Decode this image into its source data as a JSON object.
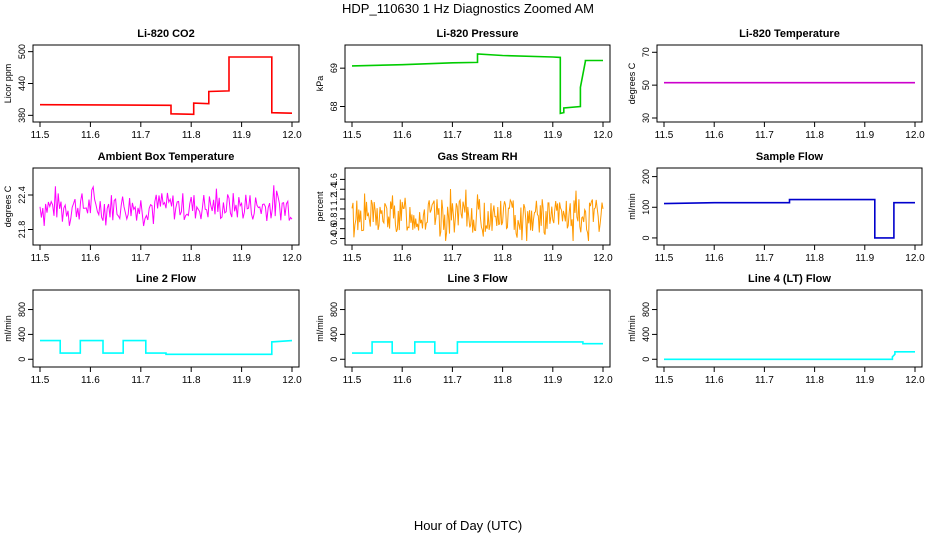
{
  "page": {
    "title": "HDP_110630  1 Hz Diagnostics Zoomed AM",
    "xlabel": "Hour of Day (UTC)"
  },
  "chart_data": [
    {
      "type": "line",
      "title": "Li-820 CO2",
      "ylabel": "Licor ppm",
      "color": "#ff0000",
      "xlim": [
        11.5,
        12.0
      ],
      "xticks": [
        "11.5",
        "11.6",
        "11.7",
        "11.8",
        "11.9",
        "12.0"
      ],
      "ylim": [
        375,
        505
      ],
      "yticks": [
        380,
        440,
        500
      ],
      "series": [
        {
          "x": [
            11.5,
            11.76,
            11.76,
            11.805,
            11.805,
            11.835,
            11.835,
            11.875,
            11.875,
            11.96,
            11.96,
            12.0
          ],
          "y": [
            400,
            399,
            383,
            382,
            403,
            402,
            425,
            426,
            490,
            490,
            385,
            384
          ]
        }
      ]
    },
    {
      "type": "line",
      "title": "Li-820 Pressure",
      "ylabel": "kPa",
      "color": "#00cc00",
      "xlim": [
        11.5,
        12.0
      ],
      "xticks": [
        "11.5",
        "11.6",
        "11.7",
        "11.8",
        "11.9",
        "12.0"
      ],
      "ylim": [
        67.7,
        69.5
      ],
      "yticks": [
        68.0,
        69.0
      ],
      "series": [
        {
          "x": [
            11.5,
            11.6,
            11.7,
            11.75,
            11.75,
            11.8,
            11.9,
            11.915,
            11.915,
            11.922,
            11.922,
            11.955,
            11.955,
            11.965,
            11.965,
            12.0
          ],
          "y": [
            69.06,
            69.09,
            69.14,
            69.15,
            69.37,
            69.33,
            69.29,
            69.28,
            67.82,
            67.84,
            67.96,
            68.0,
            68.5,
            69.18,
            69.2,
            69.2
          ]
        }
      ]
    },
    {
      "type": "line",
      "title": "Li-820 Temperature",
      "ylabel": "degrees C",
      "color": "#cc00cc",
      "xlim": [
        11.5,
        12.0
      ],
      "xticks": [
        "11.5",
        "11.6",
        "11.7",
        "11.8",
        "11.9",
        "12.0"
      ],
      "ylim": [
        30,
        72
      ],
      "yticks": [
        30,
        50,
        70
      ],
      "series": [
        {
          "x": [
            11.5,
            12.0
          ],
          "y": [
            51.5,
            51.5
          ]
        }
      ]
    },
    {
      "type": "line",
      "title": "Ambient Box Temperature",
      "ylabel": "degrees C",
      "color": "#ff00ff",
      "noise": {
        "base": 22.2,
        "amp": 0.25,
        "count": 180,
        "seed": 7
      },
      "xlim": [
        11.5,
        12.0
      ],
      "xticks": [
        "11.5",
        "11.6",
        "11.7",
        "11.8",
        "11.9",
        "12.0"
      ],
      "ylim": [
        21.6,
        22.8
      ],
      "yticks": [
        21.8,
        22.4
      ],
      "series": [
        {
          "x": [
            11.5,
            12.0
          ],
          "y": [
            22.2,
            22.2
          ]
        }
      ]
    },
    {
      "type": "line",
      "title": "Gas Stream RH",
      "ylabel": "percent",
      "color": "#ff9900",
      "noise": {
        "base": 0.85,
        "amp": 0.35,
        "count": 260,
        "seed": 13
      },
      "xlim": [
        11.5,
        12.0
      ],
      "xticks": [
        "11.5",
        "11.6",
        "11.7",
        "11.8",
        "11.9",
        "12.0"
      ],
      "ylim": [
        0.35,
        1.75
      ],
      "yticks": [
        0.4,
        0.6,
        0.8,
        1.0,
        1.2,
        1.4,
        1.6
      ],
      "series": [
        {
          "x": [
            11.5,
            12.0
          ],
          "y": [
            0.85,
            0.85
          ]
        }
      ]
    },
    {
      "type": "line",
      "title": "Sample Flow",
      "ylabel": "ml/min",
      "color": "#0000cc",
      "xlim": [
        11.5,
        12.0
      ],
      "xticks": [
        "11.5",
        "11.6",
        "11.7",
        "11.8",
        "11.9",
        "12.0"
      ],
      "ylim": [
        -10,
        215
      ],
      "yticks": [
        0,
        100,
        200
      ],
      "series": [
        {
          "x": [
            11.5,
            11.6,
            11.75,
            11.75,
            11.9,
            11.92,
            11.92,
            11.958,
            11.958,
            12.0
          ],
          "y": [
            112,
            115,
            115,
            125,
            125,
            125,
            0,
            0,
            115,
            115
          ]
        }
      ]
    },
    {
      "type": "line",
      "title": "Line 2 Flow",
      "ylabel": "ml/min",
      "color": "#00ffff",
      "xlim": [
        11.5,
        12.0
      ],
      "xticks": [
        "11.5",
        "11.6",
        "11.7",
        "11.8",
        "11.9",
        "12.0"
      ],
      "ylim": [
        -60,
        1050
      ],
      "yticks": [
        0,
        400,
        800
      ],
      "series": [
        {
          "x": [
            11.5,
            11.54,
            11.54,
            11.58,
            11.58,
            11.625,
            11.625,
            11.665,
            11.665,
            11.71,
            11.71,
            11.75,
            11.75,
            11.96,
            11.96,
            12.0
          ],
          "y": [
            300,
            300,
            100,
            100,
            300,
            300,
            100,
            100,
            300,
            300,
            100,
            100,
            80,
            80,
            280,
            300
          ]
        }
      ]
    },
    {
      "type": "line",
      "title": "Line 3 Flow",
      "ylabel": "ml/min",
      "color": "#00ffff",
      "xlim": [
        11.5,
        12.0
      ],
      "xticks": [
        "11.5",
        "11.6",
        "11.7",
        "11.8",
        "11.9",
        "12.0"
      ],
      "ylim": [
        -60,
        1050
      ],
      "yticks": [
        0,
        400,
        800
      ],
      "series": [
        {
          "x": [
            11.5,
            11.54,
            11.54,
            11.58,
            11.58,
            11.625,
            11.625,
            11.665,
            11.665,
            11.71,
            11.71,
            11.96,
            11.96,
            12.0
          ],
          "y": [
            100,
            100,
            280,
            280,
            100,
            100,
            280,
            280,
            100,
            100,
            280,
            280,
            250,
            250
          ]
        }
      ]
    },
    {
      "type": "line",
      "title": "Line 4 (LT) Flow",
      "ylabel": "ml/min",
      "color": "#00ffff",
      "xlim": [
        11.5,
        12.0
      ],
      "xticks": [
        "11.5",
        "11.6",
        "11.7",
        "11.8",
        "11.9",
        "12.0"
      ],
      "ylim": [
        -60,
        1050
      ],
      "yticks": [
        0,
        400,
        800
      ],
      "series": [
        {
          "x": [
            11.5,
            11.955,
            11.955,
            11.96,
            11.96,
            12.0
          ],
          "y": [
            0,
            0,
            40,
            80,
            120,
            120
          ]
        }
      ]
    }
  ]
}
